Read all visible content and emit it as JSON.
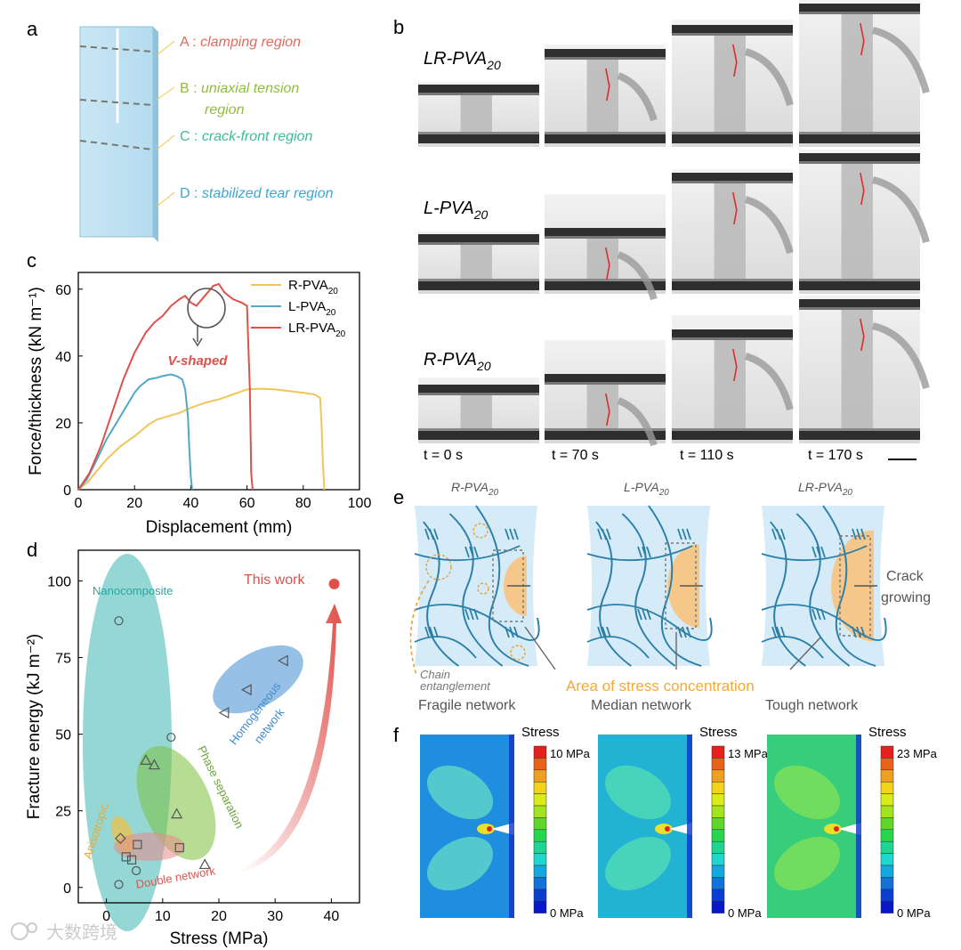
{
  "panel_labels": {
    "a": "a",
    "b": "b",
    "c": "c",
    "d": "d",
    "e": "e",
    "f": "f"
  },
  "panel_a": {
    "regions": [
      {
        "letter": "A",
        "desc": "clamping region",
        "color": "#e06a5e"
      },
      {
        "letter": "B",
        "desc": "uniaxial tension",
        "desc2": "region",
        "color": "#8fbf3a"
      },
      {
        "letter": "C",
        "desc": "crack-front region",
        "color": "#3bbd9a"
      },
      {
        "letter": "D",
        "desc": "stabilized tear region",
        "color": "#3fa6cf"
      }
    ]
  },
  "panel_b": {
    "rows": [
      {
        "label": "LR-PVA",
        "sub": "20"
      },
      {
        "label": "L-PVA",
        "sub": "20"
      },
      {
        "label": "R-PVA",
        "sub": "20"
      }
    ],
    "times": [
      "t = 0 s",
      "t = 70 s",
      "t = 110 s",
      "t = 170 s"
    ]
  },
  "chart_c": {
    "type": "line",
    "xlabel": "Displacement (mm)",
    "ylabel": "Force/thickness (kN m⁻¹)",
    "xlim": [
      0,
      100
    ],
    "ylim": [
      0,
      65
    ],
    "xticks": [
      0,
      20,
      40,
      60,
      80,
      100
    ],
    "yticks": [
      0,
      20,
      40,
      60
    ],
    "annotation": "V-shaped",
    "series": [
      {
        "name": "R-PVA",
        "sub": "20",
        "color": "#f2c55c",
        "x": [
          0,
          3,
          6,
          10,
          15,
          20,
          25,
          28,
          32,
          36,
          40,
          45,
          50,
          55,
          60,
          65,
          70,
          75,
          80,
          84,
          86,
          86.5,
          87,
          87.5
        ],
        "y": [
          0,
          2,
          5,
          9,
          13,
          16,
          19.5,
          21,
          22,
          23,
          24.5,
          26,
          27,
          28.5,
          30,
          30.2,
          30,
          29.5,
          29,
          28.5,
          27.5,
          20,
          8,
          0
        ]
      },
      {
        "name": "L-PVA",
        "sub": "20",
        "color": "#4fa9c4",
        "x": [
          0,
          3,
          6,
          10,
          15,
          20,
          22,
          25,
          28,
          30,
          33,
          35,
          37,
          38,
          39,
          39.5,
          40,
          40.5
        ],
        "y": [
          0,
          3,
          8,
          15,
          22,
          29,
          31,
          33,
          33.5,
          34,
          34.5,
          34,
          33,
          30,
          22,
          12,
          4,
          0
        ]
      },
      {
        "name": "LR-PVA",
        "sub": "20",
        "color": "#e0504a",
        "x": [
          0,
          4,
          8,
          12,
          16,
          20,
          24,
          27,
          30,
          33,
          36,
          38,
          40,
          42,
          45,
          48,
          50,
          52,
          55,
          58,
          60,
          61,
          61.5,
          62
        ],
        "y": [
          0,
          5,
          13,
          23,
          33,
          41,
          47,
          50,
          52,
          55,
          57,
          58,
          56,
          55,
          58,
          61,
          61.5,
          59,
          57,
          56,
          55,
          30,
          5,
          0
        ]
      }
    ]
  },
  "chart_d": {
    "type": "scatter",
    "xlabel": "Stress (MPa)",
    "ylabel": "Fracture energy (kJ m⁻²)",
    "xlim": [
      -5,
      45
    ],
    "ylim": [
      -5,
      110
    ],
    "xticks": [
      0,
      10,
      20,
      30,
      40
    ],
    "yticks": [
      0,
      25,
      50,
      75,
      100
    ],
    "groups": [
      {
        "name": "Nanocomposite",
        "marker": "circle",
        "color": "#4cbcb8",
        "x": [
          2.2,
          11.5,
          5.3,
          2.2
        ],
        "y": [
          87,
          49,
          5.5,
          1
        ]
      },
      {
        "name": "Homogeneous network",
        "marker": "triangle-left",
        "color": "#3f8dcf",
        "x": [
          31.5,
          25,
          21
        ],
        "y": [
          74,
          64.5,
          57
        ]
      },
      {
        "name": "Phase separation",
        "marker": "triangle",
        "color": "#6aa63a",
        "x": [
          7,
          8.5,
          12.5,
          17.5
        ],
        "y": [
          41.5,
          40,
          24,
          7.5
        ]
      },
      {
        "name": "Anisotropic",
        "marker": "diamond",
        "color": "#e8a93a",
        "x": [
          2.5
        ],
        "y": [
          16
        ]
      },
      {
        "name": "Double network",
        "marker": "square",
        "color": "#d77472",
        "x": [
          5.5,
          13,
          3.5,
          4.5
        ],
        "y": [
          14,
          13,
          10,
          9
        ]
      }
    ],
    "this_work": {
      "label": "This work",
      "x": 40.5,
      "y": 99,
      "color": "#e0504a"
    }
  },
  "panel_e": {
    "titles": [
      {
        "label": "R-PVA",
        "sub": "20"
      },
      {
        "label": "L-PVA",
        "sub": "20"
      },
      {
        "label": "LR-PVA",
        "sub": "20"
      }
    ],
    "captions": [
      "Fragile network",
      "Median network",
      "Tough network"
    ],
    "chain_entanglement": [
      "Chain",
      "entanglement"
    ],
    "stress_area": "Area of stress concentration",
    "crack": [
      "Crack",
      "growing"
    ]
  },
  "panel_f": {
    "legend_title": "Stress",
    "maxes": [
      "10 MPa",
      "13 MPa",
      "23 MPa"
    ],
    "min": "0 MPa",
    "colormap": [
      "#e6201c",
      "#e9621c",
      "#f0a020",
      "#f3d21b",
      "#d9ec1a",
      "#a3e41e",
      "#5ed728",
      "#26d74e",
      "#1ed694",
      "#1ed8d0",
      "#14a8e0",
      "#1173d9",
      "#0a3ed1",
      "#0818c8"
    ]
  },
  "watermark": "大数跨境"
}
